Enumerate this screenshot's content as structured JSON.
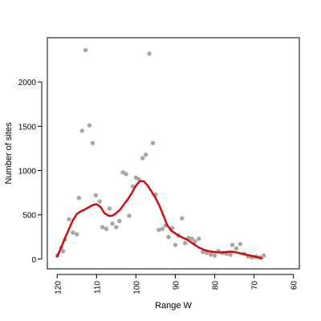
{
  "chart_data": {
    "type": "scatter",
    "xlabel": "Range W",
    "ylabel": "Number of sites",
    "xlim": [
      122.5,
      58.5
    ],
    "ylim": [
      -110,
      2500
    ],
    "x_ticks": [
      120,
      110,
      100,
      90,
      80,
      70,
      60
    ],
    "y_ticks": [
      0,
      500,
      1000,
      1500,
      2000
    ],
    "x_tick_labels": [
      "120",
      "110",
      "100",
      "90",
      "80",
      "70",
      "60"
    ],
    "y_tick_labels": [
      "0",
      "500",
      "1000",
      "1500",
      "2000"
    ],
    "grid": false,
    "legend": "none",
    "point_color": "#a6a6a6",
    "curve_color": "#e00000",
    "points": [
      {
        "x": 120,
        "y": 40
      },
      {
        "x": 119,
        "y": 130
      },
      {
        "x": 118.5,
        "y": 90
      },
      {
        "x": 118,
        "y": 220
      },
      {
        "x": 117,
        "y": 450
      },
      {
        "x": 116,
        "y": 300
      },
      {
        "x": 115,
        "y": 280
      },
      {
        "x": 114.5,
        "y": 690
      },
      {
        "x": 113.7,
        "y": 1450
      },
      {
        "x": 112.8,
        "y": 2360
      },
      {
        "x": 111.8,
        "y": 1510
      },
      {
        "x": 111,
        "y": 1310
      },
      {
        "x": 110.2,
        "y": 720
      },
      {
        "x": 109.2,
        "y": 650
      },
      {
        "x": 108.5,
        "y": 360
      },
      {
        "x": 107.5,
        "y": 340
      },
      {
        "x": 106.7,
        "y": 570
      },
      {
        "x": 106,
        "y": 400
      },
      {
        "x": 105,
        "y": 360
      },
      {
        "x": 104.2,
        "y": 430
      },
      {
        "x": 103.3,
        "y": 980
      },
      {
        "x": 102.5,
        "y": 960
      },
      {
        "x": 101.7,
        "y": 490
      },
      {
        "x": 100.8,
        "y": 820
      },
      {
        "x": 100,
        "y": 920
      },
      {
        "x": 99.2,
        "y": 900
      },
      {
        "x": 98.3,
        "y": 1140
      },
      {
        "x": 97.5,
        "y": 1180
      },
      {
        "x": 96.6,
        "y": 2320
      },
      {
        "x": 95.7,
        "y": 1310
      },
      {
        "x": 95,
        "y": 730
      },
      {
        "x": 94.2,
        "y": 330
      },
      {
        "x": 93.3,
        "y": 340
      },
      {
        "x": 92.5,
        "y": 380
      },
      {
        "x": 91.7,
        "y": 250
      },
      {
        "x": 90.8,
        "y": 350
      },
      {
        "x": 90,
        "y": 160
      },
      {
        "x": 89.2,
        "y": 270
      },
      {
        "x": 88.3,
        "y": 460
      },
      {
        "x": 87.5,
        "y": 180
      },
      {
        "x": 86.6,
        "y": 240
      },
      {
        "x": 85.8,
        "y": 230
      },
      {
        "x": 85,
        "y": 200
      },
      {
        "x": 84,
        "y": 230
      },
      {
        "x": 83,
        "y": 80
      },
      {
        "x": 82,
        "y": 70
      },
      {
        "x": 81,
        "y": 50
      },
      {
        "x": 80,
        "y": 40
      },
      {
        "x": 79,
        "y": 90
      },
      {
        "x": 78,
        "y": 70
      },
      {
        "x": 77,
        "y": 60
      },
      {
        "x": 76,
        "y": 50
      },
      {
        "x": 75.5,
        "y": 160
      },
      {
        "x": 74.5,
        "y": 120
      },
      {
        "x": 73.5,
        "y": 170
      },
      {
        "x": 72.5,
        "y": 60
      },
      {
        "x": 71.5,
        "y": 30
      },
      {
        "x": 70.5,
        "y": 20
      },
      {
        "x": 69.5,
        "y": 30
      },
      {
        "x": 68.5,
        "y": 20
      },
      {
        "x": 67.5,
        "y": 40
      }
    ],
    "smooth_curve": [
      {
        "x": 120,
        "y": 30
      },
      {
        "x": 119,
        "y": 130
      },
      {
        "x": 118,
        "y": 240
      },
      {
        "x": 117,
        "y": 340
      },
      {
        "x": 116,
        "y": 440
      },
      {
        "x": 115,
        "y": 510
      },
      {
        "x": 114,
        "y": 540
      },
      {
        "x": 113,
        "y": 560
      },
      {
        "x": 112,
        "y": 585
      },
      {
        "x": 111,
        "y": 610
      },
      {
        "x": 110,
        "y": 620
      },
      {
        "x": 109,
        "y": 590
      },
      {
        "x": 108,
        "y": 520
      },
      {
        "x": 107,
        "y": 490
      },
      {
        "x": 106,
        "y": 490
      },
      {
        "x": 105,
        "y": 520
      },
      {
        "x": 104,
        "y": 560
      },
      {
        "x": 103,
        "y": 620
      },
      {
        "x": 102,
        "y": 680
      },
      {
        "x": 101,
        "y": 750
      },
      {
        "x": 100,
        "y": 830
      },
      {
        "x": 99,
        "y": 880
      },
      {
        "x": 98,
        "y": 880
      },
      {
        "x": 97,
        "y": 830
      },
      {
        "x": 96,
        "y": 760
      },
      {
        "x": 95,
        "y": 690
      },
      {
        "x": 94,
        "y": 600
      },
      {
        "x": 93,
        "y": 490
      },
      {
        "x": 92,
        "y": 380
      },
      {
        "x": 91,
        "y": 320
      },
      {
        "x": 90,
        "y": 290
      },
      {
        "x": 89,
        "y": 260
      },
      {
        "x": 88,
        "y": 240
      },
      {
        "x": 87,
        "y": 220
      },
      {
        "x": 86,
        "y": 190
      },
      {
        "x": 85,
        "y": 160
      },
      {
        "x": 84,
        "y": 130
      },
      {
        "x": 83,
        "y": 110
      },
      {
        "x": 82,
        "y": 95
      },
      {
        "x": 81,
        "y": 85
      },
      {
        "x": 80,
        "y": 80
      },
      {
        "x": 79,
        "y": 75
      },
      {
        "x": 78,
        "y": 75
      },
      {
        "x": 77,
        "y": 80
      },
      {
        "x": 76,
        "y": 85
      },
      {
        "x": 75,
        "y": 80
      },
      {
        "x": 74,
        "y": 70
      },
      {
        "x": 73,
        "y": 60
      },
      {
        "x": 72,
        "y": 50
      },
      {
        "x": 71,
        "y": 40
      },
      {
        "x": 70,
        "y": 30
      },
      {
        "x": 69,
        "y": 20
      },
      {
        "x": 68,
        "y": 10
      }
    ]
  }
}
